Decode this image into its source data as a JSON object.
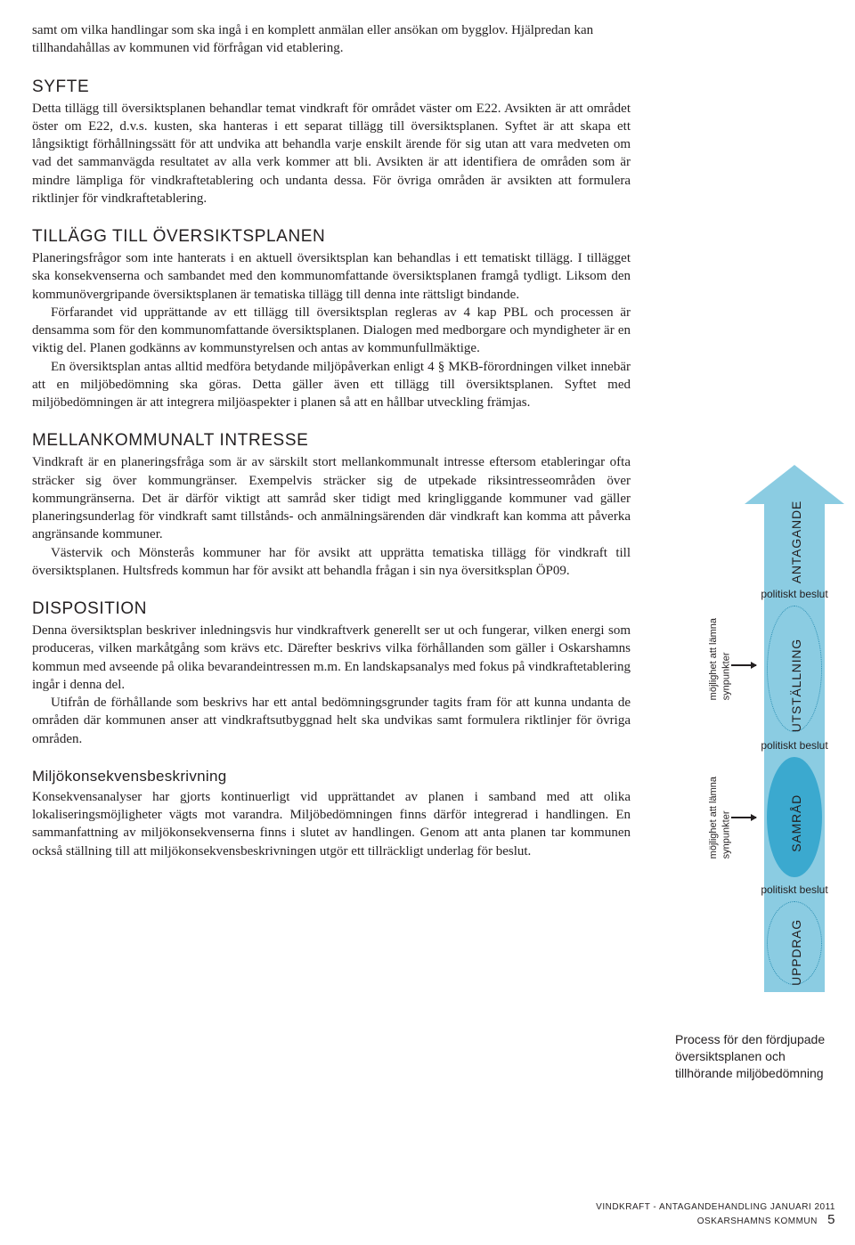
{
  "intro": "samt om vilka handlingar som ska ingå i en komplett anmälan eller ansökan om bygglov. Hjälpredan kan tillhandahållas av kommunen vid förfrågan vid etablering.",
  "sections": {
    "syfte": {
      "heading": "SYFTE",
      "p1": "Detta tillägg till översiktsplanen behandlar temat vindkraft för området väster om E22. Avsikten är att området öster om E22, d.v.s. kusten, ska hanteras i ett separat tillägg till översiktsplanen. Syftet är att skapa ett långsiktigt förhållningssätt för att undvika att behandla varje enskilt ärende för sig utan att vara medveten om vad det sammanvägda resultatet av alla verk kommer att bli. Avsikten är att identifiera de områden som är mindre lämpliga för vindkraftetablering och undanta dessa. För övriga områden är avsikten att formulera riktlinjer för vindkraftetablering."
    },
    "tillagg": {
      "heading": "TILLÄGG TILL ÖVERSIKTSPLANEN",
      "p1": "Planeringsfrågor som inte hanterats i en aktuell översiktsplan kan behandlas i ett tematiskt tillägg. I tillägget ska konsekvenserna och sambandet med den kommunomfattande översiktsplanen framgå tydligt. Liksom den kommunövergripande översiktsplanen är tematiska tillägg till denna inte rättsligt bindande.",
      "p2": "Förfarandet vid upprättande av ett tillägg till översiktsplan regleras av 4 kap PBL och processen är densamma som för den kommunomfattande översiktsplanen. Dialogen med medborgare och myndigheter är en viktig del. Planen godkänns av kommunstyrelsen och antas av kommunfullmäktige.",
      "p3": "En översiktsplan antas alltid medföra betydande miljöpåverkan enligt 4 § MKB-förordningen vilket innebär att en miljöbedömning ska göras. Detta gäller även ett tillägg till översiktsplanen. Syftet med miljöbedömningen är att integrera miljöaspekter i planen så att en hållbar utveckling främjas."
    },
    "mellan": {
      "heading": "MELLANKOMMUNALT INTRESSE",
      "p1": "Vindkraft är en planeringsfråga som är av särskilt stort mellankommunalt intresse eftersom etableringar ofta sträcker sig över kommungränser. Exempelvis sträcker sig de utpekade riksintresseområden över kommungränserna. Det är därför viktigt att samråd sker tidigt med kringliggande kommuner vad gäller planeringsunderlag för vindkraft samt tillstånds- och anmälningsärenden där vindkraft kan komma att påverka angränsande kommuner.",
      "p2": "Västervik och Mönsterås kommuner har för avsikt att upprätta tematiska tillägg för vindkraft till översiktsplanen. Hultsfreds kommun har för avsikt att behandla frågan i sin nya översitksplan ÖP09."
    },
    "disposition": {
      "heading": "DISPOSITION",
      "p1": "Denna översiktsplan beskriver inledningsvis hur vindkraftverk generellt ser ut och fungerar, vilken energi som produceras, vilken markåtgång som krävs etc. Därefter beskrivs vilka förhållanden som gäller i Oskarshamns kommun med avseende på olika bevarandeintressen m.m. En landskapsanalys med fokus på vindkraftetablering ingår i denna del.",
      "p2": "Utifrån de förhållande som beskrivs har ett antal bedömningsgrunder tagits fram för att kunna undanta de områden där kommunen anser att vindkraftsutbyggnad helt ska undvikas samt formulera riktlinjer för övriga områden."
    },
    "miljo": {
      "heading": "Miljökonsekvensbeskrivning",
      "p1": "Konsekvensanalyser har gjorts kontinuerligt vid upprättandet av planen i samband med att olika lokaliseringsmöjligheter vägts mot varandra. Miljöbedömningen finns därför integrerad i handlingen. En sammanfattning av miljökonsekvenserna finns i slutet av handlingen. Genom att anta planen tar kommunen också ställning till att miljökonsekvensbeskrivningen utgör ett tillräckligt underlag för beslut."
    }
  },
  "diagram": {
    "stages": {
      "antagande": "ANTAGANDE",
      "utstallning": "UTSTÄLLNING",
      "samrad": "SAMRÅD",
      "uppdrag": "UPPDRAG"
    },
    "politiskt": "politiskt beslut",
    "side_note": "möjlighet att lämna\nsynpunkter",
    "caption": "Process för den fördjupade översiktsplanen och tillhörande miljöbedömning",
    "colors": {
      "arrow_fill": "#8bcce2",
      "ellipse_fill": "#3ba9cf",
      "ellipse_dotted": "#2b8fb3"
    }
  },
  "footer": {
    "line1": "VINDKRAFT - ANTAGANDEHANDLING JANUARI 2011",
    "line2": "OSKARSHAMNS KOMMUN",
    "page": "5"
  }
}
